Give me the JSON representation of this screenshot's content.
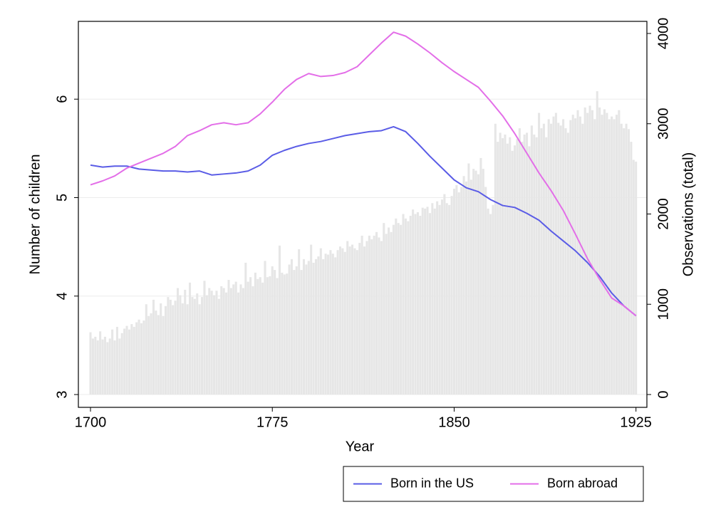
{
  "chart_data": {
    "type": "combo",
    "xlabel": "Year",
    "ylabel": "Number of children",
    "y2label": "Observations (total)",
    "xlim": [
      1695,
      1929.5
    ],
    "xticks": [
      1700,
      1775,
      1850,
      1925
    ],
    "ylim": [
      2.87,
      6.79
    ],
    "yticks": [
      3,
      4,
      5,
      6
    ],
    "y2lim": [
      -142,
      4134
    ],
    "y2ticks": [
      0,
      1000,
      2000,
      3000,
      4000
    ],
    "grid": true,
    "legend_position": "bottom-right",
    "bars": {
      "axis": "y2",
      "color": "#e6e6e6",
      "x": [
        1700,
        1701,
        1702,
        1703,
        1704,
        1705,
        1706,
        1707,
        1708,
        1709,
        1710,
        1711,
        1712,
        1713,
        1714,
        1715,
        1716,
        1717,
        1718,
        1719,
        1720,
        1721,
        1722,
        1723,
        1724,
        1725,
        1726,
        1727,
        1728,
        1729,
        1730,
        1731,
        1732,
        1733,
        1734,
        1735,
        1736,
        1737,
        1738,
        1739,
        1740,
        1741,
        1742,
        1743,
        1744,
        1745,
        1746,
        1747,
        1748,
        1749,
        1750,
        1751,
        1752,
        1753,
        1754,
        1755,
        1756,
        1757,
        1758,
        1759,
        1760,
        1761,
        1762,
        1763,
        1764,
        1765,
        1766,
        1767,
        1768,
        1769,
        1770,
        1771,
        1772,
        1773,
        1774,
        1775,
        1776,
        1777,
        1778,
        1779,
        1780,
        1781,
        1782,
        1783,
        1784,
        1785,
        1786,
        1787,
        1788,
        1789,
        1790,
        1791,
        1792,
        1793,
        1794,
        1795,
        1796,
        1797,
        1798,
        1799,
        1800,
        1801,
        1802,
        1803,
        1804,
        1805,
        1806,
        1807,
        1808,
        1809,
        1810,
        1811,
        1812,
        1813,
        1814,
        1815,
        1816,
        1817,
        1818,
        1819,
        1820,
        1821,
        1822,
        1823,
        1824,
        1825,
        1826,
        1827,
        1828,
        1829,
        1830,
        1831,
        1832,
        1833,
        1834,
        1835,
        1836,
        1837,
        1838,
        1839,
        1840,
        1841,
        1842,
        1843,
        1844,
        1845,
        1846,
        1847,
        1848,
        1849,
        1850,
        1851,
        1852,
        1853,
        1854,
        1855,
        1856,
        1857,
        1858,
        1859,
        1860,
        1861,
        1862,
        1863,
        1864,
        1865,
        1866,
        1867,
        1868,
        1869,
        1870,
        1871,
        1872,
        1873,
        1874,
        1875,
        1876,
        1877,
        1878,
        1879,
        1880,
        1881,
        1882,
        1883,
        1884,
        1885,
        1886,
        1887,
        1888,
        1889,
        1890,
        1891,
        1892,
        1893,
        1894,
        1895,
        1896,
        1897,
        1898,
        1899,
        1900,
        1901,
        1902,
        1903,
        1904,
        1905,
        1906,
        1907,
        1908,
        1909,
        1910,
        1911,
        1912,
        1913,
        1914,
        1915,
        1916,
        1917,
        1918,
        1919,
        1920,
        1921,
        1922,
        1923,
        1924,
        1925
      ],
      "values": [
        690,
        620,
        640,
        600,
        700,
        610,
        640,
        580,
        620,
        720,
        600,
        750,
        620,
        680,
        730,
        760,
        720,
        780,
        750,
        800,
        830,
        790,
        820,
        1000,
        870,
        900,
        1050,
        930,
        880,
        1010,
        870,
        980,
        1080,
        1050,
        990,
        1040,
        1180,
        1100,
        1010,
        1160,
        1000,
        1240,
        1080,
        1060,
        1120,
        1000,
        1080,
        1260,
        1100,
        1180,
        1150,
        1100,
        1150,
        1060,
        1200,
        1180,
        1130,
        1270,
        1180,
        1220,
        1250,
        1130,
        1220,
        1180,
        1460,
        1250,
        1300,
        1200,
        1350,
        1280,
        1300,
        1240,
        1480,
        1300,
        1310,
        1420,
        1380,
        1290,
        1650,
        1350,
        1330,
        1340,
        1440,
        1500,
        1380,
        1420,
        1610,
        1380,
        1500,
        1440,
        1480,
        1660,
        1460,
        1500,
        1530,
        1620,
        1500,
        1560,
        1550,
        1600,
        1560,
        1520,
        1600,
        1640,
        1620,
        1580,
        1700,
        1640,
        1660,
        1620,
        1600,
        1680,
        1760,
        1640,
        1700,
        1760,
        1720,
        1760,
        1800,
        1740,
        1700,
        1900,
        1780,
        1850,
        1800,
        1880,
        1950,
        1900,
        1880,
        2000,
        1950,
        1920,
        1980,
        2050,
        2000,
        2020,
        1980,
        2070,
        2060,
        2080,
        2010,
        2120,
        2060,
        2140,
        2100,
        2160,
        2220,
        2120,
        2100,
        2200,
        2280,
        2320,
        2240,
        2300,
        2420,
        2360,
        2560,
        2380,
        2500,
        2480,
        2440,
        2620,
        2500,
        2300,
        2060,
        2000,
        2100,
        3000,
        2800,
        2900,
        2840,
        2880,
        2780,
        2850,
        2700,
        2760,
        2830,
        2950,
        2800,
        2880,
        2900,
        2750,
        2980,
        2880,
        2850,
        3120,
        2950,
        3000,
        2850,
        3050,
        3000,
        3080,
        3120,
        3010,
        2980,
        3050,
        2950,
        2900,
        3040,
        3100,
        3060,
        3150,
        3080,
        3000,
        3180,
        3120,
        3200,
        3150,
        3050,
        3360,
        3180,
        3100,
        3160,
        3120,
        3050,
        3080,
        3050,
        3100,
        3150,
        3000,
        2950,
        3000,
        2940,
        2800,
        2600,
        2580
      ]
    },
    "x": [
      1700,
      1705,
      1710,
      1715,
      1720,
      1725,
      1730,
      1735,
      1740,
      1745,
      1750,
      1755,
      1760,
      1765,
      1770,
      1775,
      1780,
      1785,
      1790,
      1795,
      1800,
      1805,
      1810,
      1815,
      1820,
      1825,
      1830,
      1835,
      1840,
      1845,
      1850,
      1855,
      1860,
      1865,
      1870,
      1875,
      1880,
      1885,
      1890,
      1895,
      1900,
      1905,
      1910,
      1915,
      1920,
      1925
    ],
    "series": [
      {
        "name": "Born in the US",
        "color": "#5a5ce6",
        "values": [
          5.33,
          5.31,
          5.32,
          5.32,
          5.29,
          5.28,
          5.27,
          5.27,
          5.26,
          5.27,
          5.23,
          5.24,
          5.25,
          5.27,
          5.33,
          5.43,
          5.48,
          5.52,
          5.55,
          5.57,
          5.6,
          5.63,
          5.65,
          5.67,
          5.68,
          5.72,
          5.67,
          5.55,
          5.42,
          5.3,
          5.18,
          5.1,
          5.06,
          4.98,
          4.92,
          4.9,
          4.84,
          4.77,
          4.66,
          4.56,
          4.46,
          4.34,
          4.2,
          4.03,
          3.9,
          3.8
        ]
      },
      {
        "name": "Born abroad",
        "color": "#e36ee8",
        "values": [
          5.13,
          5.17,
          5.22,
          5.3,
          5.35,
          5.4,
          5.45,
          5.52,
          5.63,
          5.68,
          5.74,
          5.76,
          5.74,
          5.76,
          5.85,
          5.97,
          6.1,
          6.2,
          6.26,
          6.23,
          6.24,
          6.27,
          6.33,
          6.45,
          6.57,
          6.68,
          6.64,
          6.56,
          6.47,
          6.37,
          6.28,
          6.2,
          6.12,
          5.98,
          5.83,
          5.65,
          5.45,
          5.25,
          5.07,
          4.87,
          4.63,
          4.38,
          4.17,
          3.98,
          3.9,
          3.8
        ]
      }
    ]
  }
}
